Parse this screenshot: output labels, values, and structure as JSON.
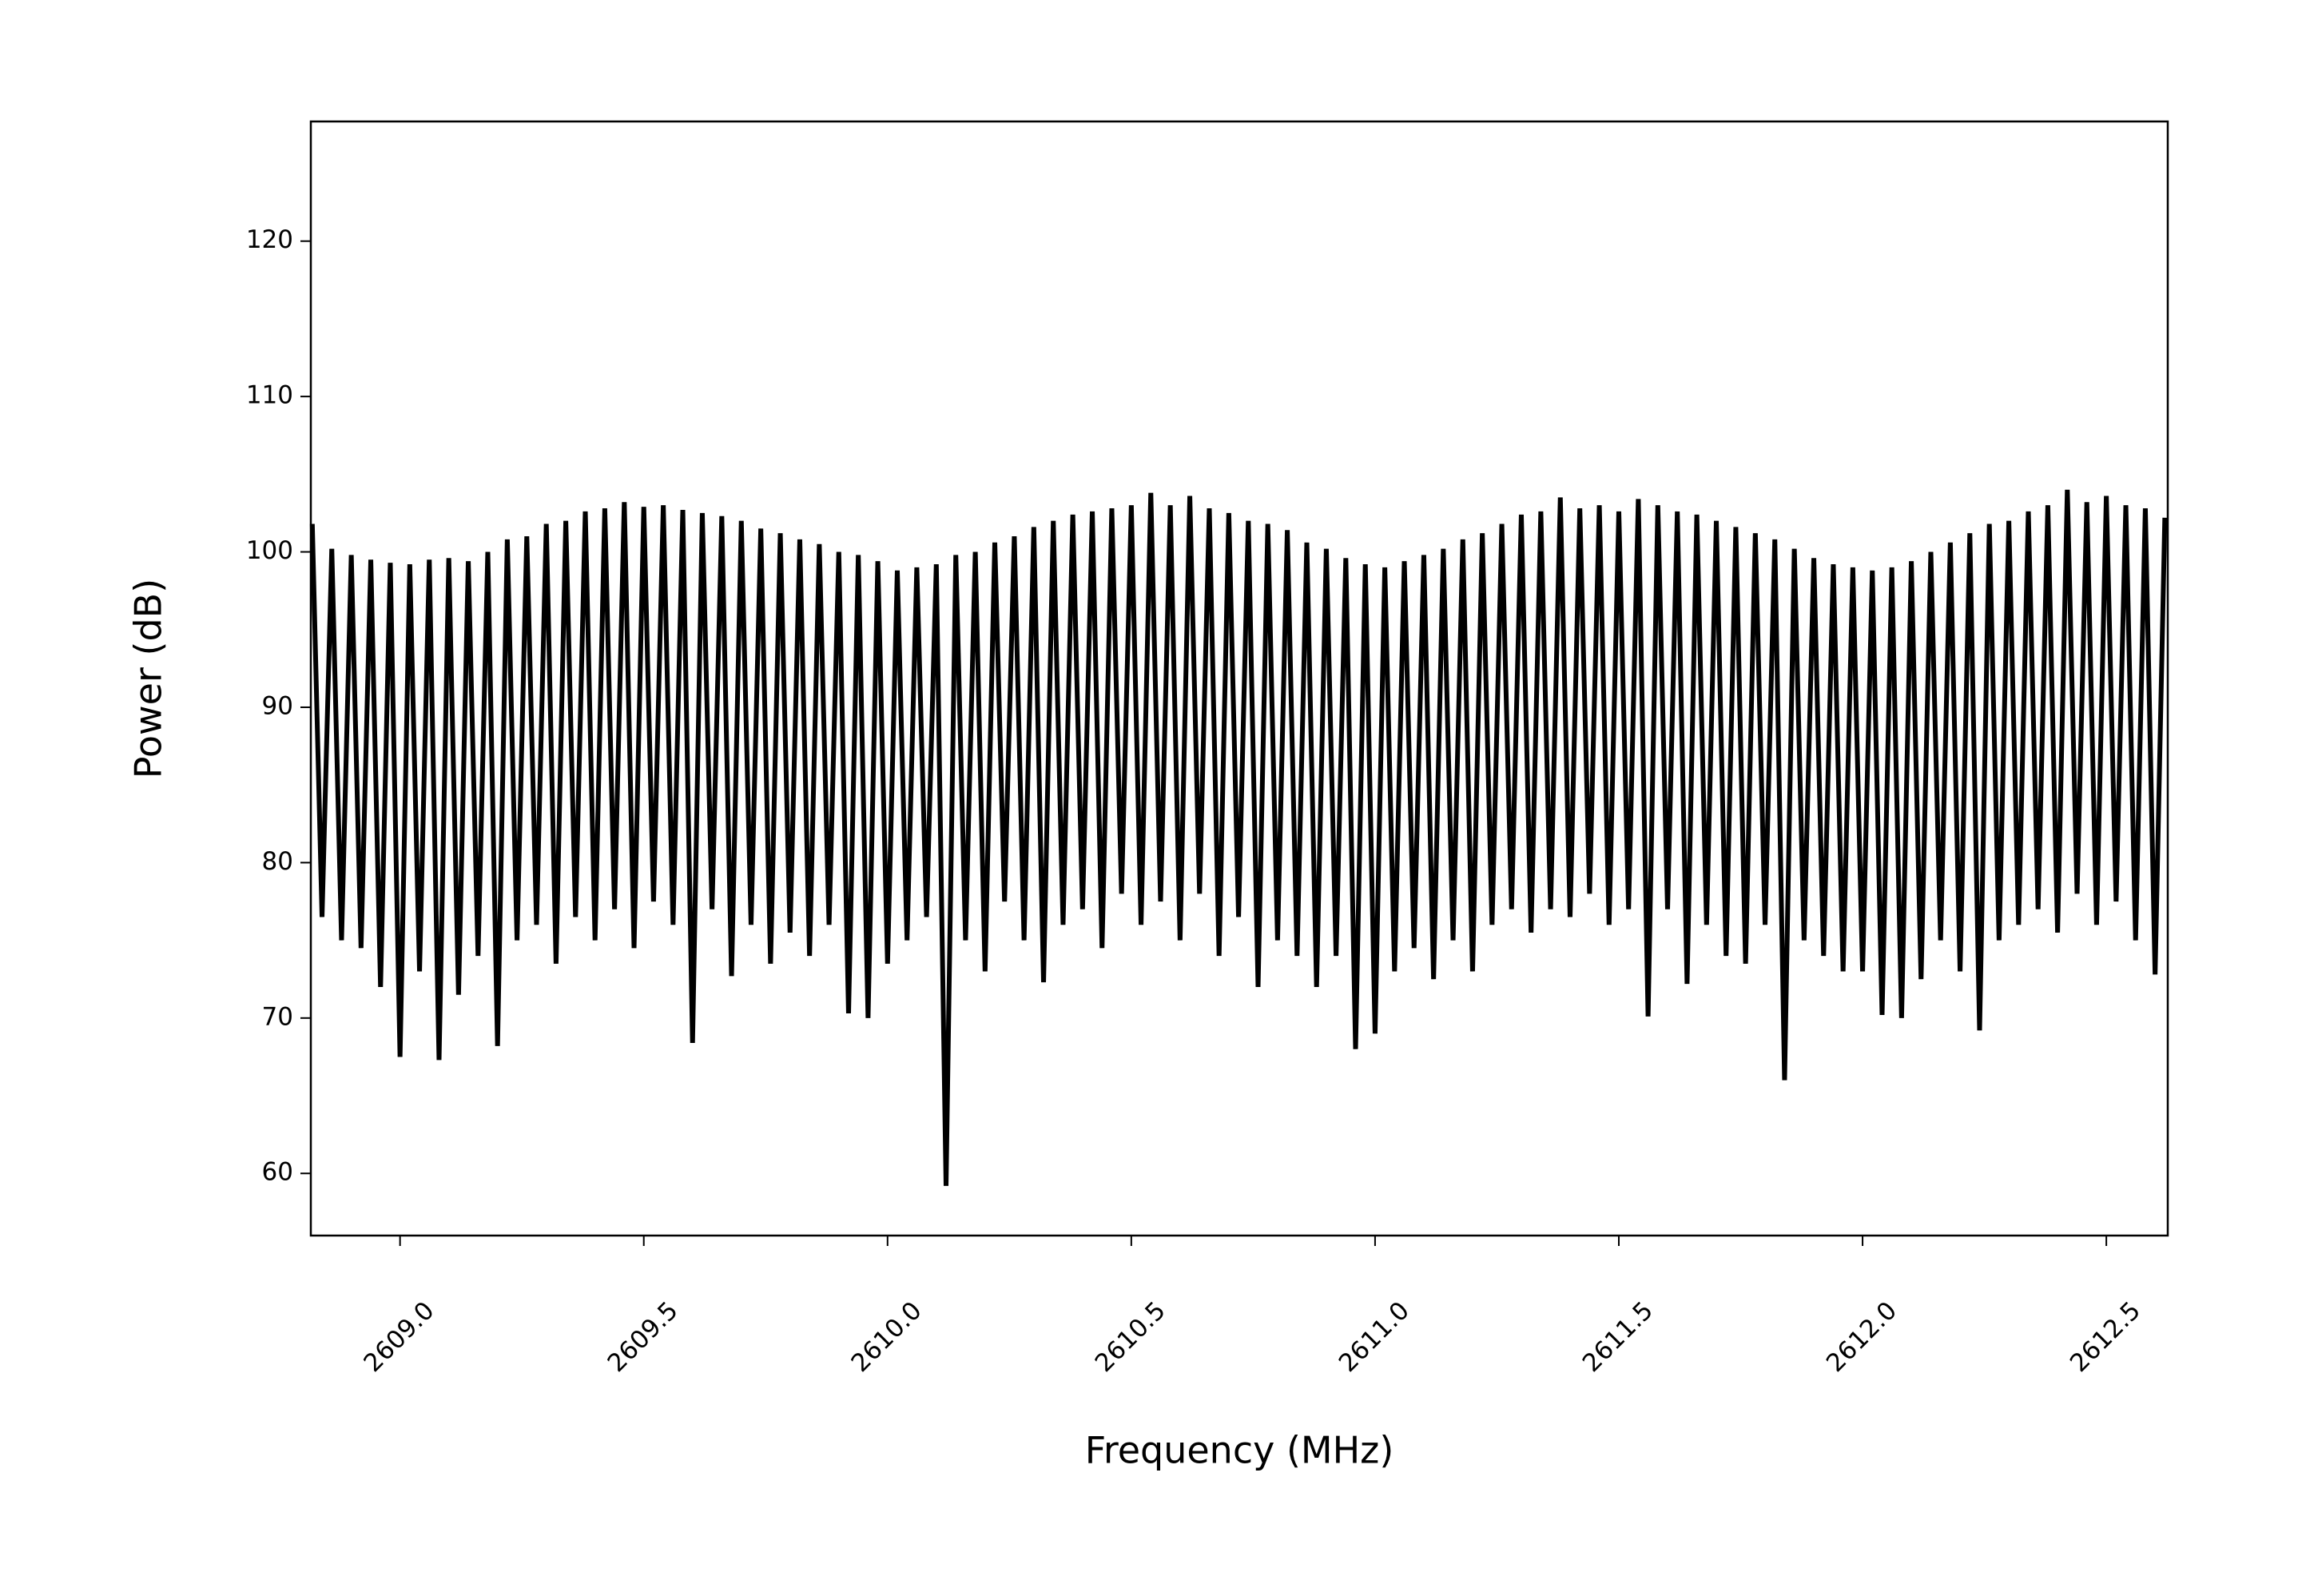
{
  "chart_data": {
    "type": "line",
    "xlabel": "Frequency (MHz)",
    "ylabel": "Power (dB)",
    "xlim": [
      2608.817,
      2612.626
    ],
    "ylim": [
      56.0,
      127.7
    ],
    "xticks": [
      {
        "value": 2609,
        "label": "2609.0"
      },
      2609.5,
      {
        "value": 2610,
        "label": "2610.0"
      },
      2610.5,
      {
        "value": 2611,
        "label": "2611.0"
      },
      2611.5,
      {
        "value": 2612,
        "label": "2612.0"
      },
      2612.5
    ],
    "yticks": [
      60,
      70,
      80,
      90,
      100,
      110,
      120
    ],
    "grid": false,
    "color": "#000000",
    "x": [
      2608.82,
      2608.84,
      2608.86,
      2608.88,
      2608.9,
      2608.92,
      2608.94,
      2608.96,
      2608.98,
      2609,
      2609.02,
      2609.04,
      2609.06,
      2609.08,
      2609.1,
      2609.12,
      2609.14,
      2609.16,
      2609.18,
      2609.2,
      2609.22,
      2609.24,
      2609.26,
      2609.28,
      2609.3,
      2609.32,
      2609.34,
      2609.36,
      2609.38,
      2609.4,
      2609.42,
      2609.44,
      2609.46,
      2609.48,
      2609.5,
      2609.52,
      2609.54,
      2609.56,
      2609.58,
      2609.6,
      2609.62,
      2609.64,
      2609.66,
      2609.68,
      2609.7,
      2609.72,
      2609.74,
      2609.76,
      2609.78,
      2609.8,
      2609.82,
      2609.84,
      2609.86,
      2609.88,
      2609.9,
      2609.92,
      2609.94,
      2609.96,
      2609.98,
      2610,
      2610.02,
      2610.04,
      2610.06,
      2610.08,
      2610.1,
      2610.12,
      2610.14,
      2610.16,
      2610.18,
      2610.2,
      2610.22,
      2610.24,
      2610.26,
      2610.28,
      2610.3,
      2610.32,
      2610.34,
      2610.36,
      2610.38,
      2610.4,
      2610.42,
      2610.44,
      2610.46,
      2610.48,
      2610.5,
      2610.52,
      2610.54,
      2610.56,
      2610.58,
      2610.6,
      2610.62,
      2610.64,
      2610.66,
      2610.68,
      2610.7,
      2610.72,
      2610.74,
      2610.76,
      2610.78,
      2610.8,
      2610.82,
      2610.84,
      2610.86,
      2610.88,
      2610.9,
      2610.92,
      2610.94,
      2610.96,
      2610.98,
      2611,
      2611.02,
      2611.04,
      2611.06,
      2611.08,
      2611.1,
      2611.12,
      2611.14,
      2611.16,
      2611.18,
      2611.2,
      2611.22,
      2611.24,
      2611.26,
      2611.28,
      2611.3,
      2611.32,
      2611.34,
      2611.36,
      2611.38,
      2611.4,
      2611.42,
      2611.44,
      2611.46,
      2611.48,
      2611.5,
      2611.52,
      2611.54,
      2611.56,
      2611.58,
      2611.6,
      2611.62,
      2611.64,
      2611.66,
      2611.68,
      2611.7,
      2611.72,
      2611.74,
      2611.76,
      2611.78,
      2611.8,
      2611.82,
      2611.84,
      2611.86,
      2611.88,
      2611.9,
      2611.92,
      2611.94,
      2611.96,
      2611.98,
      2612,
      2612.02,
      2612.04,
      2612.06,
      2612.08,
      2612.1,
      2612.12,
      2612.14,
      2612.16,
      2612.18,
      2612.2,
      2612.22,
      2612.24,
      2612.26,
      2612.28,
      2612.3,
      2612.32,
      2612.34,
      2612.36,
      2612.38,
      2612.4,
      2612.42,
      2612.44,
      2612.46,
      2612.48,
      2612.5,
      2612.52,
      2612.54,
      2612.56,
      2612.58,
      2612.6,
      2612.62
    ],
    "values": [
      101.8,
      76.5,
      100.2,
      75.0,
      99.8,
      74.5,
      99.5,
      72.0,
      99.3,
      67.5,
      99.2,
      73.0,
      99.5,
      67.3,
      99.6,
      71.5,
      99.4,
      74.0,
      100.0,
      68.2,
      100.8,
      75.0,
      101.0,
      76.0,
      101.8,
      73.5,
      102.0,
      76.5,
      102.6,
      75.0,
      102.8,
      77.0,
      103.2,
      74.5,
      102.9,
      77.5,
      103.0,
      76.0,
      102.7,
      68.4,
      102.5,
      77.0,
      102.3,
      72.7,
      102.0,
      76.0,
      101.5,
      73.5,
      101.2,
      75.5,
      100.8,
      74.0,
      100.5,
      76.0,
      100.0,
      70.3,
      99.8,
      70.0,
      99.4,
      73.5,
      98.8,
      75.0,
      99.0,
      76.5,
      99.2,
      59.2,
      99.8,
      75.0,
      100.0,
      73.0,
      100.6,
      77.5,
      101.0,
      75.0,
      101.6,
      72.3,
      102.0,
      76.0,
      102.4,
      77.0,
      102.6,
      74.5,
      102.8,
      78.0,
      103.0,
      76.0,
      103.8,
      77.5,
      103.0,
      75.0,
      103.6,
      78.0,
      102.8,
      74.0,
      102.5,
      76.5,
      102.0,
      72.0,
      101.8,
      75.0,
      101.4,
      74.0,
      100.6,
      72.0,
      100.2,
      74.0,
      99.6,
      68.0,
      99.2,
      69.0,
      99.0,
      73.0,
      99.4,
      74.5,
      99.8,
      72.5,
      100.2,
      75.0,
      100.8,
      73.0,
      101.2,
      76.0,
      101.8,
      77.0,
      102.4,
      75.5,
      102.6,
      77.0,
      103.5,
      76.5,
      102.8,
      78.0,
      103.0,
      76.0,
      102.6,
      77.0,
      103.4,
      70.1,
      103.0,
      77.0,
      102.6,
      72.2,
      102.4,
      76.0,
      102.0,
      74.0,
      101.6,
      73.5,
      101.2,
      76.0,
      100.8,
      66.0,
      100.2,
      75.0,
      99.6,
      74.0,
      99.2,
      73.0,
      99.0,
      73.0,
      98.8,
      70.2,
      99.0,
      70.0,
      99.4,
      72.5,
      100.0,
      75.0,
      100.6,
      73.0,
      101.2,
      69.2,
      101.8,
      75.0,
      102.0,
      76.0,
      102.6,
      77.0,
      103.0,
      75.5,
      104.0,
      78.0,
      103.2,
      76.0,
      103.6,
      77.5,
      103.0,
      75.0,
      102.8,
      72.8,
      102.2
    ]
  }
}
